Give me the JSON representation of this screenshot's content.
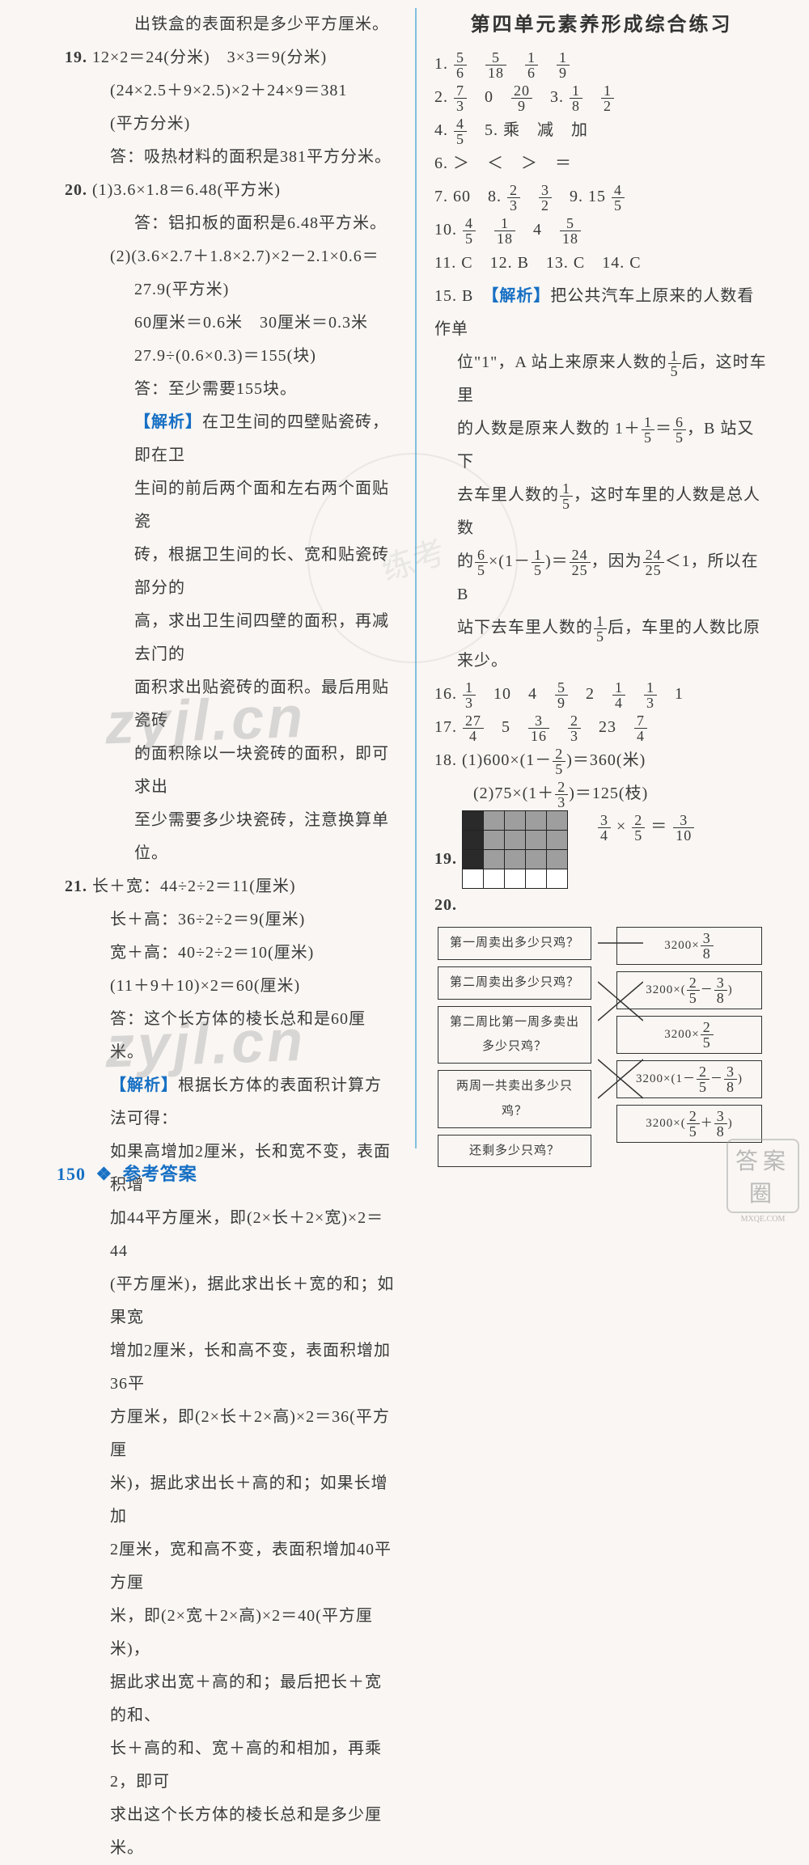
{
  "watermark": "zyjl.cn",
  "stamp_text": "练考",
  "footer": {
    "page": "150",
    "label": "参考答案"
  },
  "corner": {
    "big": "答案圈",
    "small": "MXQE.COM"
  },
  "title_right": "第四单元素养形成综合练习",
  "left_lines": [
    {
      "cls": "sub",
      "t": "出铁盒的表面积是多少平方厘米。"
    },
    {
      "cls": "",
      "html": "<span class='q-num'>19.</span> 12×2＝24(分米)　3×3＝9(分米)"
    },
    {
      "cls": "indented",
      "t": "(24×2.5＋9×2.5)×2＋24×9＝381"
    },
    {
      "cls": "indented",
      "t": "(平方分米)"
    },
    {
      "cls": "indented",
      "t": "答：吸热材料的面积是381平方分米。"
    },
    {
      "cls": "",
      "html": "<span class='q-num'>20.</span> (1)3.6×1.8＝6.48(平方米)"
    },
    {
      "cls": "sub",
      "t": "答：铝扣板的面积是6.48平方米。"
    },
    {
      "cls": "indented",
      "t": "(2)(3.6×2.7＋1.8×2.7)×2－2.1×0.6＝"
    },
    {
      "cls": "sub",
      "t": "27.9(平方米)"
    },
    {
      "cls": "sub",
      "t": "60厘米＝0.6米　30厘米＝0.3米"
    },
    {
      "cls": "sub",
      "t": "27.9÷(0.6×0.3)＝155(块)"
    },
    {
      "cls": "sub",
      "t": "答：至少需要155块。"
    },
    {
      "cls": "sub",
      "html": "<span class='blue'>【解析】</span>在卫生间的四壁贴瓷砖，即在卫"
    },
    {
      "cls": "sub",
      "t": "生间的前后两个面和左右两个面贴瓷"
    },
    {
      "cls": "sub",
      "t": "砖，根据卫生间的长、宽和贴瓷砖部分的"
    },
    {
      "cls": "sub",
      "t": "高，求出卫生间四壁的面积，再减去门的"
    },
    {
      "cls": "sub",
      "t": "面积求出贴瓷砖的面积。最后用贴瓷砖"
    },
    {
      "cls": "sub",
      "t": "的面积除以一块瓷砖的面积，即可求出"
    },
    {
      "cls": "sub",
      "t": "至少需要多少块瓷砖，注意换算单位。"
    },
    {
      "cls": "",
      "html": "<span class='q-num'>21.</span> 长＋宽：44÷2÷2＝11(厘米)"
    },
    {
      "cls": "indented",
      "t": "长＋高：36÷2÷2＝9(厘米)"
    },
    {
      "cls": "indented",
      "t": "宽＋高：40÷2÷2＝10(厘米)"
    },
    {
      "cls": "indented",
      "t": "(11＋9＋10)×2＝60(厘米)"
    },
    {
      "cls": "indented",
      "t": "答：这个长方体的棱长总和是60厘米。"
    },
    {
      "cls": "indented",
      "html": "<span class='blue'>【解析】</span>根据长方体的表面积计算方法可得："
    },
    {
      "cls": "indented",
      "t": "如果高增加2厘米，长和宽不变，表面积增"
    },
    {
      "cls": "indented",
      "t": "加44平方厘米，即(2×长＋2×宽)×2＝44"
    },
    {
      "cls": "indented",
      "t": "(平方厘米)，据此求出长＋宽的和；如果宽"
    },
    {
      "cls": "indented",
      "t": "增加2厘米，长和高不变，表面积增加36平"
    },
    {
      "cls": "indented",
      "t": "方厘米，即(2×长＋2×高)×2＝36(平方厘"
    },
    {
      "cls": "indented",
      "t": "米)，据此求出长＋高的和；如果长增加"
    },
    {
      "cls": "indented",
      "t": "2厘米，宽和高不变，表面积增加40平方厘"
    },
    {
      "cls": "indented",
      "t": "米，即(2×宽＋2×高)×2＝40(平方厘米)，"
    },
    {
      "cls": "indented",
      "t": "据此求出宽＋高的和；最后把长＋宽的和、"
    },
    {
      "cls": "indented",
      "t": "长＋高的和、宽＋高的和相加，再乘2，即可"
    },
    {
      "cls": "indented",
      "t": "求出这个长方体的棱长总和是多少厘米。"
    }
  ],
  "right": {
    "r1": {
      "f1": {
        "n": "5",
        "d": "6"
      },
      "f2": {
        "n": "5",
        "d": "18"
      },
      "f3": {
        "n": "1",
        "d": "6"
      },
      "f4": {
        "n": "1",
        "d": "9"
      }
    },
    "r2": {
      "label_a": "2.",
      "f1": {
        "n": "7",
        "d": "3"
      },
      "zero": "0",
      "f2": {
        "n": "20",
        "d": "9"
      },
      "label_b": "3.",
      "f3": {
        "n": "1",
        "d": "8"
      },
      "f4": {
        "n": "1",
        "d": "2"
      }
    },
    "r4": {
      "label": "4.",
      "f1": {
        "n": "4",
        "d": "5"
      },
      "r5": "5. 乘　减　加"
    },
    "r6": "6. ＞　＜　＞　＝",
    "r7": {
      "a": "7. 60",
      "b": "8.",
      "f1": {
        "n": "2",
        "d": "3"
      },
      "f2": {
        "n": "3",
        "d": "2"
      },
      "c": "9. 15",
      "f3": {
        "n": "4",
        "d": "5"
      }
    },
    "r10": {
      "label": "10.",
      "f1": {
        "n": "4",
        "d": "5"
      },
      "f2": {
        "n": "1",
        "d": "18"
      },
      "four": "4",
      "f3": {
        "n": "5",
        "d": "18"
      }
    },
    "r11": "11. C　12. B　13. C　14. C",
    "r15a": {
      "pre": "15. B　",
      "tag": "【解析】",
      "post": "把公共汽车上原来的人数看作单"
    },
    "r15_lines": [
      {
        "parts": [
          "位\"1\"，A 站上来原来人数的",
          {
            "n": "1",
            "d": "5"
          },
          "后，这时车里"
        ]
      },
      {
        "parts": [
          "的人数是原来人数的 1＋",
          {
            "n": "1",
            "d": "5"
          },
          "＝",
          {
            "n": "6",
            "d": "5"
          },
          "，B 站又下"
        ]
      },
      {
        "parts": [
          "去车里人数的",
          {
            "n": "1",
            "d": "5"
          },
          "，这时车里的人数是总人数"
        ]
      },
      {
        "parts": [
          "的",
          {
            "n": "6",
            "d": "5"
          },
          "×(1－",
          {
            "n": "1",
            "d": "5"
          },
          ")＝",
          {
            "n": "24",
            "d": "25"
          },
          "，因为",
          {
            "n": "24",
            "d": "25"
          },
          "＜1，所以在 B"
        ]
      },
      {
        "parts": [
          "站下去车里人数的",
          {
            "n": "1",
            "d": "5"
          },
          "后，车里的人数比原来少。"
        ]
      }
    ],
    "r16": {
      "label": "16.",
      "f1": {
        "n": "1",
        "d": "3"
      },
      "v2": "10",
      "v3": "4",
      "f2": {
        "n": "5",
        "d": "9"
      },
      "v4": "2",
      "f3": {
        "n": "1",
        "d": "4"
      },
      "f4": {
        "n": "1",
        "d": "3"
      },
      "v5": "1"
    },
    "r17": {
      "label": "17.",
      "f1": {
        "n": "27",
        "d": "4"
      },
      "v2": "5",
      "f2": {
        "n": "3",
        "d": "16"
      },
      "f3": {
        "n": "2",
        "d": "3"
      },
      "v3": "23",
      "f4": {
        "n": "7",
        "d": "4"
      }
    },
    "r18a": {
      "label": "18. (1)600×(1－",
      "f": {
        "n": "2",
        "d": "5"
      },
      "tail": ")＝360(米)"
    },
    "r18b": {
      "label": "(2)75×(1＋",
      "f": {
        "n": "2",
        "d": "3"
      },
      "tail": ")＝125(枝)"
    },
    "r19eq": {
      "f1": {
        "n": "3",
        "d": "4"
      },
      "f2": {
        "n": "2",
        "d": "5"
      },
      "f3": {
        "n": "3",
        "d": "10"
      }
    },
    "grid19": {
      "rows": [
        [
          "dk",
          "gr",
          "gr",
          "gr",
          "gr"
        ],
        [
          "dk",
          "gr",
          "gr",
          "gr",
          "gr"
        ],
        [
          "dk",
          "gr",
          "gr",
          "gr",
          "gr"
        ],
        [
          "wt",
          "wt",
          "wt",
          "wt",
          "wt"
        ]
      ]
    },
    "q20": {
      "left": [
        "第一周卖出多少只鸡？",
        "第二周卖出多少只鸡？",
        "第二周比第一周多卖出多少只鸡？",
        "两周一共卖出多少只鸡？",
        "还剩多少只鸡？"
      ],
      "right_parts": [
        [
          "3200×",
          {
            "n": "3",
            "d": "8"
          }
        ],
        [
          "3200×(",
          {
            "n": "2",
            "d": "5"
          },
          "－",
          {
            "n": "3",
            "d": "8"
          },
          ")"
        ],
        [
          "3200×",
          {
            "n": "2",
            "d": "5"
          }
        ],
        [
          "3200×(1－",
          {
            "n": "2",
            "d": "5"
          },
          "－",
          {
            "n": "3",
            "d": "8"
          },
          ")"
        ],
        [
          "3200×(",
          {
            "n": "2",
            "d": "5"
          },
          "＋",
          {
            "n": "3",
            "d": "8"
          },
          ")"
        ]
      ]
    }
  },
  "grid_colors": {
    "dk": "#2a2a2a",
    "gr": "#9e9e9e",
    "wt": "#ffffff"
  }
}
